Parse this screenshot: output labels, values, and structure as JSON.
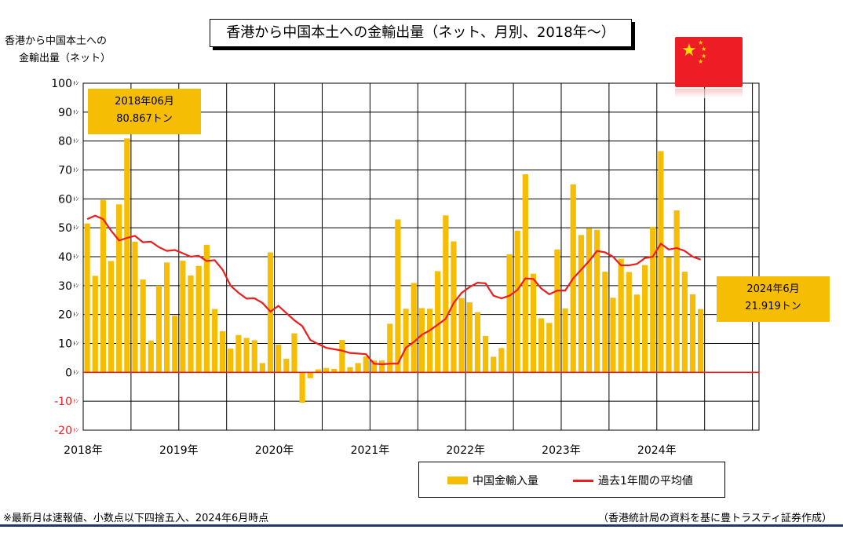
{
  "title": "香港から中国本土への金輸出量（ネット、月別、2018年～）",
  "ylabel_lines": [
    "香港から中国本土への",
    "金輸出量（ネット）"
  ],
  "annotations": {
    "first": {
      "line1": "2018年06月",
      "line2": "80.867トン"
    },
    "last": {
      "line1": "2024年6月",
      "line2": "21.919トン"
    }
  },
  "legend": {
    "bar_label": "中国金輸入量",
    "line_label": "過去1年間の平均値"
  },
  "footnote_left": "※最新月は速報値、小数点以下四捨五入、2024年6月時点",
  "footnote_right": "（香港統計局の資料を基に豊トラスティ証券作成）",
  "colors": {
    "bar": "#f5bd04",
    "line": "#ee1c1c",
    "zero_line": "#ee1c1c",
    "negative_tick": "#ee1c1c",
    "flag_red": "#ee1c25",
    "flag_star": "#ffde00",
    "rule": "#1f3864"
  },
  "icons": {
    "flag": "china-flag-icon"
  },
  "chart_data": {
    "type": "bar",
    "ylim": [
      -20,
      100
    ],
    "ytick_values": [
      100,
      90,
      80,
      70,
      60,
      50,
      40,
      30,
      20,
      10,
      0,
      -10,
      -20
    ],
    "ytick_unit": "ﾄﾝ",
    "xtick_labels": [
      "2018年",
      "2019年",
      "2020年",
      "2021年",
      "2022年",
      "2023年",
      "2024年"
    ],
    "grid": true,
    "legend_position": "bottom-right",
    "series": [
      {
        "name": "中国金輸入量",
        "type": "bar",
        "values": [
          51.5,
          33.4,
          59.6,
          38.5,
          58.1,
          80.9,
          45.2,
          32.1,
          11.0,
          30.0,
          38.0,
          19.6,
          38.6,
          33.5,
          36.8,
          44.1,
          21.9,
          14.2,
          8.2,
          12.9,
          11.9,
          11.1,
          3.2,
          41.5,
          9.6,
          4.7,
          13.5,
          -10.5,
          -2.0,
          1.0,
          1.5,
          1.2,
          11.2,
          1.8,
          3.2,
          5.5,
          4.1,
          4.1,
          16.8,
          52.9,
          22.0,
          30.9,
          22.2,
          22.0,
          35.0,
          54.3,
          45.3,
          25.7,
          24.2,
          20.8,
          12.6,
          5.4,
          8.4,
          40.8,
          49.0,
          68.5,
          34.1,
          18.7,
          17.1,
          42.5,
          22.1,
          65.0,
          47.5,
          49.9,
          49.3,
          34.8,
          25.8,
          39.3,
          34.7,
          26.9,
          37.1,
          50.3,
          76.5,
          39.8,
          56.0,
          34.8,
          27.0,
          21.9
        ]
      },
      {
        "name": "過去1年間の平均値",
        "type": "line",
        "values": [
          53.0,
          54.2,
          53.0,
          49.0,
          45.6,
          46.5,
          47.2,
          45.0,
          45.2,
          43.3,
          42.0,
          42.3,
          41.2,
          40.0,
          40.3,
          38.5,
          38.8,
          35.5,
          30.0,
          27.5,
          25.5,
          25.6,
          24.0,
          21.0,
          23.0,
          20.5,
          18.0,
          16.0,
          11.2,
          9.8,
          8.5,
          8.0,
          7.5,
          6.7,
          6.5,
          6.3,
          3.0,
          2.8,
          3.0,
          3.0,
          8.5,
          10.5,
          13.0,
          14.5,
          16.5,
          18.5,
          24.0,
          27.5,
          29.5,
          31.0,
          30.8,
          26.5,
          25.6,
          26.5,
          28.5,
          32.5,
          32.3,
          29.0,
          27.0,
          28.3,
          28.3,
          32.5,
          35.5,
          38.5,
          42.0,
          41.5,
          40.0,
          37.0,
          37.0,
          37.5,
          39.5,
          40.0,
          44.5,
          42.5,
          43.0,
          42.0,
          40.0,
          39.0
        ]
      }
    ]
  }
}
